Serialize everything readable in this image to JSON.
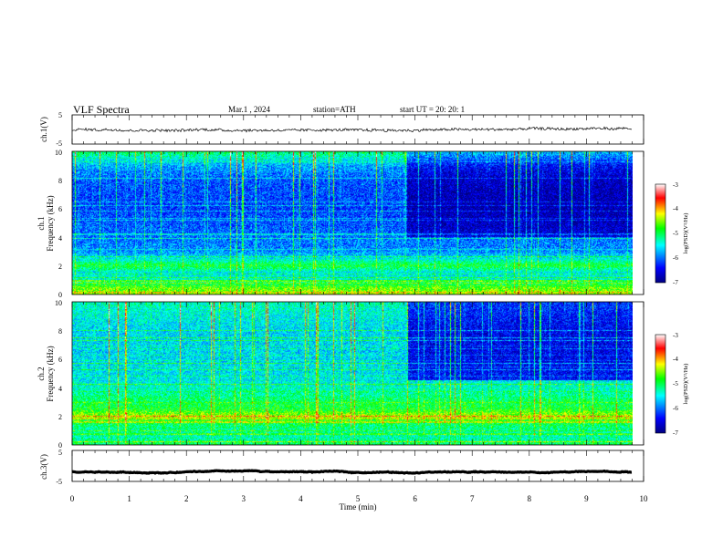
{
  "header": {
    "title": "VLF Spectra",
    "date": "Mar.1 , 2024",
    "station": "station=ATH",
    "start": "start UT = 20: 20: 1"
  },
  "colors": {
    "background": "#ffffff",
    "axes": "#000000",
    "trace": "#000000",
    "jet": [
      "#000080",
      "#0000ff",
      "#00ffff",
      "#00ff00",
      "#ffff00",
      "#ff0000",
      "#ffffff"
    ]
  },
  "chart_data": [
    {
      "type": "line",
      "panel": "ch1-waveform",
      "ylabel": "ch.1(V)",
      "ylim": [
        -5,
        5
      ],
      "yticks": [
        "5",
        "-5"
      ],
      "xlim": [
        0,
        10
      ],
      "trace_level": 0,
      "trace_noise": 0.45
    },
    {
      "type": "heatmap",
      "panel": "ch1-spectrogram",
      "ylabel_channel": "ch.1",
      "ylabel": "Frequency (kHz)",
      "ylim": [
        0,
        10
      ],
      "yticks": [
        "0",
        "2",
        "4",
        "6",
        "8",
        "10"
      ],
      "xlim": [
        0,
        10
      ],
      "data_end_min": 9.8,
      "colorbar": {
        "label": "log(PSD)(V²/Hz)",
        "range": [
          -7,
          -3
        ],
        "ticks": [
          "-3",
          "-4",
          "-5",
          "-6",
          "-7"
        ]
      },
      "spectral_profile": [
        {
          "kHz": 0.0,
          "level": -4.4
        },
        {
          "kHz": 0.5,
          "level": -4.7
        },
        {
          "kHz": 1.0,
          "level": -5.4
        },
        {
          "kHz": 1.5,
          "level": -5.5
        },
        {
          "kHz": 2.0,
          "level": -4.9
        },
        {
          "kHz": 2.5,
          "level": -5.5
        },
        {
          "kHz": 3.0,
          "level": -5.9
        },
        {
          "kHz": 4.0,
          "level": -6.0
        },
        {
          "kHz": 5.0,
          "level": -6.1
        },
        {
          "kHz": 6.0,
          "level": -6.2
        },
        {
          "kHz": 8.0,
          "level": -6.1
        },
        {
          "kHz": 9.0,
          "level": -5.8
        },
        {
          "kHz": 10.0,
          "level": -5.1
        }
      ],
      "after_change": {
        "time_min": 5.85,
        "level_shift": -0.6,
        "above_kHz": 4.0
      }
    },
    {
      "type": "heatmap",
      "panel": "ch2-spectrogram",
      "ylabel_channel": "ch.2",
      "ylabel": "Frequency (kHz)",
      "ylim": [
        0,
        10
      ],
      "yticks": [
        "0",
        "2",
        "4",
        "6",
        "8",
        "10"
      ],
      "xlim": [
        0,
        10
      ],
      "data_end_min": 9.8,
      "colorbar": {
        "label": "log(PSD)(V²/Hz)",
        "range": [
          -7,
          -3
        ],
        "ticks": [
          "-3",
          "-4",
          "-5",
          "-6",
          "-7"
        ]
      },
      "spectral_profile": [
        {
          "kHz": 0.0,
          "level": -5.0
        },
        {
          "kHz": 0.5,
          "level": -5.3
        },
        {
          "kHz": 1.0,
          "level": -5.2
        },
        {
          "kHz": 1.5,
          "level": -5.0
        },
        {
          "kHz": 2.0,
          "level": -4.4
        },
        {
          "kHz": 2.5,
          "level": -4.9
        },
        {
          "kHz": 3.0,
          "level": -5.0
        },
        {
          "kHz": 3.5,
          "level": -5.2
        },
        {
          "kHz": 4.5,
          "level": -5.5
        },
        {
          "kHz": 6.0,
          "level": -5.6
        },
        {
          "kHz": 8.0,
          "level": -5.6
        },
        {
          "kHz": 10.0,
          "level": -5.3
        }
      ],
      "after_change": {
        "time_min": 5.85,
        "level_shift": -0.9,
        "above_kHz": 4.5
      }
    },
    {
      "type": "line",
      "panel": "ch3-waveform",
      "ylabel": "ch.3(V)",
      "ylim": [
        -5,
        5
      ],
      "yticks": [
        "5",
        "-5"
      ],
      "xlim": [
        0,
        10
      ],
      "trace_level": -2,
      "trace_noise": 0.08
    }
  ],
  "xaxis": {
    "label": "Time (min)",
    "ticks": [
      "0",
      "1",
      "2",
      "3",
      "4",
      "5",
      "6",
      "7",
      "8",
      "9",
      "10"
    ]
  }
}
